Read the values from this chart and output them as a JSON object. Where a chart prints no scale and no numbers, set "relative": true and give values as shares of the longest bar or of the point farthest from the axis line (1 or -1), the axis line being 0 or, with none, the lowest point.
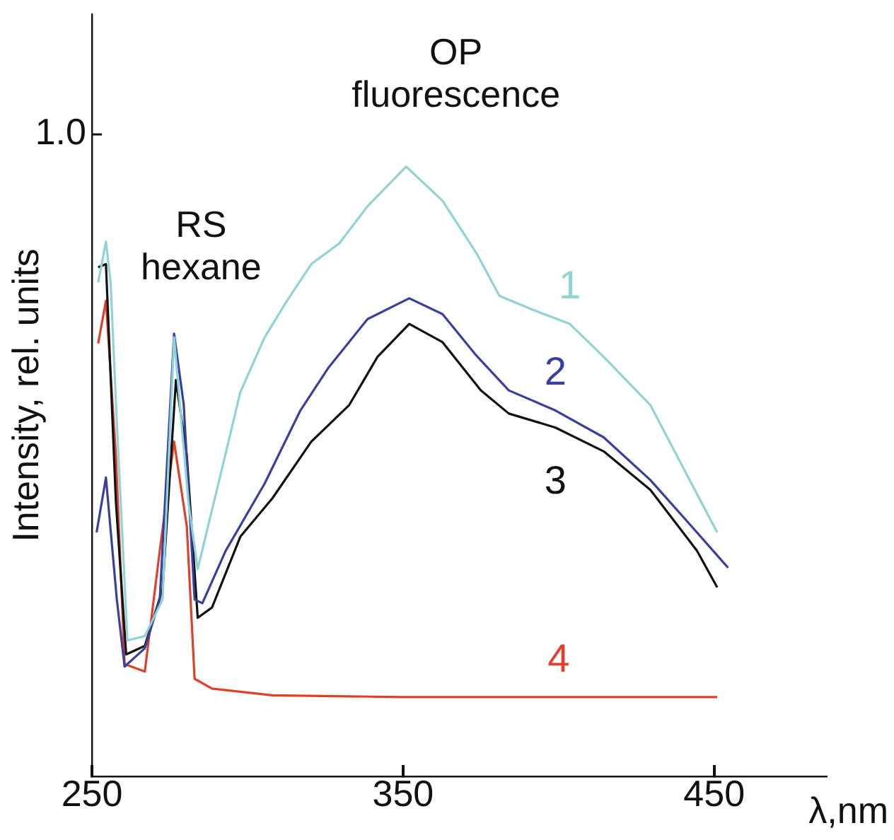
{
  "chart_data": {
    "type": "line",
    "relative": true,
    "xlabel": "λ,nm",
    "ylabel": "Intensity, rel. units",
    "xlim": [
      250,
      486
    ],
    "xticks": [
      250,
      350,
      450
    ],
    "grid": false,
    "legend": false,
    "marker": "none",
    "line_style": "solid",
    "annotations": [
      "1.0",
      "OP fluorescence",
      "RS hexane"
    ],
    "series": [
      {
        "name": "1",
        "color": "#8fd3d6",
        "x": [
          252,
          254.5,
          256,
          258,
          261.4,
          267,
          272.7,
          276.4,
          281,
          284,
          293,
          297.7,
          305.5,
          312.7,
          320.5,
          329.5,
          338.6,
          351,
          362.7,
          373.6,
          381,
          391.8,
          403.6,
          414.5,
          429.5,
          444.5,
          451
        ],
        "values": [
          0.81,
          0.877,
          0.81,
          0.58,
          0.223,
          0.23,
          0.29,
          0.72,
          0.45,
          0.34,
          0.53,
          0.63,
          0.72,
          0.78,
          0.84,
          0.874,
          0.935,
          1.0,
          0.944,
          0.858,
          0.788,
          0.765,
          0.742,
          0.688,
          0.609,
          0.463,
          0.4
        ]
      },
      {
        "name": "2",
        "color": "#3a3f9e",
        "x": [
          251.5,
          254.5,
          258,
          260.5,
          267,
          271.8,
          276.4,
          279.5,
          283,
          285.5,
          293,
          305.5,
          317,
          326,
          338.6,
          352,
          362.7,
          373.6,
          384,
          399,
          414.5,
          429.5,
          444.5,
          454.5
        ],
        "values": [
          0.4,
          0.49,
          0.29,
          0.18,
          0.21,
          0.29,
          0.726,
          0.61,
          0.29,
          0.284,
          0.37,
          0.48,
          0.6,
          0.67,
          0.75,
          0.784,
          0.758,
          0.69,
          0.633,
          0.6,
          0.556,
          0.486,
          0.4,
          0.342
        ]
      },
      {
        "name": "3",
        "color": "#111111",
        "x": [
          252,
          254.5,
          257.7,
          261,
          267,
          272.7,
          277,
          280.5,
          284,
          288.6,
          297.7,
          308,
          320.5,
          332.7,
          341.8,
          352,
          362.7,
          375,
          384,
          399,
          414.5,
          429.5,
          444.5,
          451
        ],
        "values": [
          0.835,
          0.84,
          0.45,
          0.2,
          0.214,
          0.307,
          0.65,
          0.526,
          0.26,
          0.277,
          0.393,
          0.456,
          0.549,
          0.609,
          0.688,
          0.742,
          0.712,
          0.633,
          0.595,
          0.572,
          0.533,
          0.47,
          0.37,
          0.31
        ]
      },
      {
        "name": "4",
        "color": "#e0402a",
        "x": [
          252,
          254.5,
          257.7,
          260.5,
          267,
          271.8,
          276.4,
          280.5,
          283,
          288.6,
          308,
          350,
          400,
          451
        ],
        "values": [
          0.71,
          0.78,
          0.526,
          0.184,
          0.172,
          0.37,
          0.549,
          0.41,
          0.16,
          0.144,
          0.133,
          0.13,
          0.13,
          0.13
        ]
      }
    ]
  }
}
